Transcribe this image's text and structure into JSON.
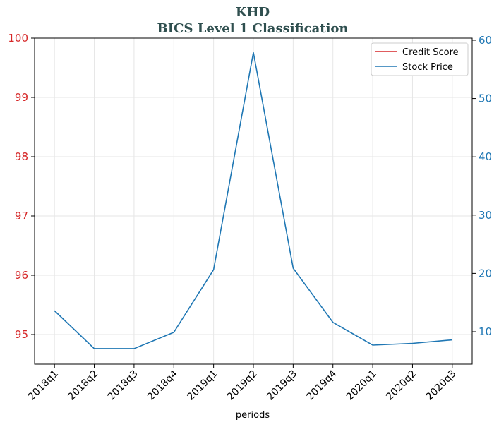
{
  "chart_data": {
    "type": "line",
    "title": "KHD",
    "subtitle": "BICS Level 1 Classification",
    "xlabel": "periods",
    "categories": [
      "2018q1",
      "2018q2",
      "2018q3",
      "2018q4",
      "2019q1",
      "2019q2",
      "2019q3",
      "2019q4",
      "2020q1",
      "2020q2",
      "2020q3"
    ],
    "series": [
      {
        "name": "Credit Score",
        "color": "#d62728",
        "axis": "y",
        "values": [
          null,
          null,
          null,
          null,
          null,
          null,
          null,
          null,
          null,
          null,
          null
        ]
      },
      {
        "name": "Stock Price",
        "color": "#1f77b4",
        "axis": "y2",
        "values": [
          13.6,
          7.1,
          7.1,
          9.9,
          20.65,
          57.9,
          20.9,
          11.6,
          7.7,
          8.0,
          8.6
        ]
      }
    ],
    "ylim": [
      94.5,
      100
    ],
    "yticks": [
      95,
      96,
      97,
      98,
      99,
      100
    ],
    "y2lim": [
      4.43,
      60.36
    ],
    "y2ticks": [
      10,
      20,
      30,
      40,
      50,
      60
    ],
    "grid": true,
    "legend": "upper right"
  }
}
